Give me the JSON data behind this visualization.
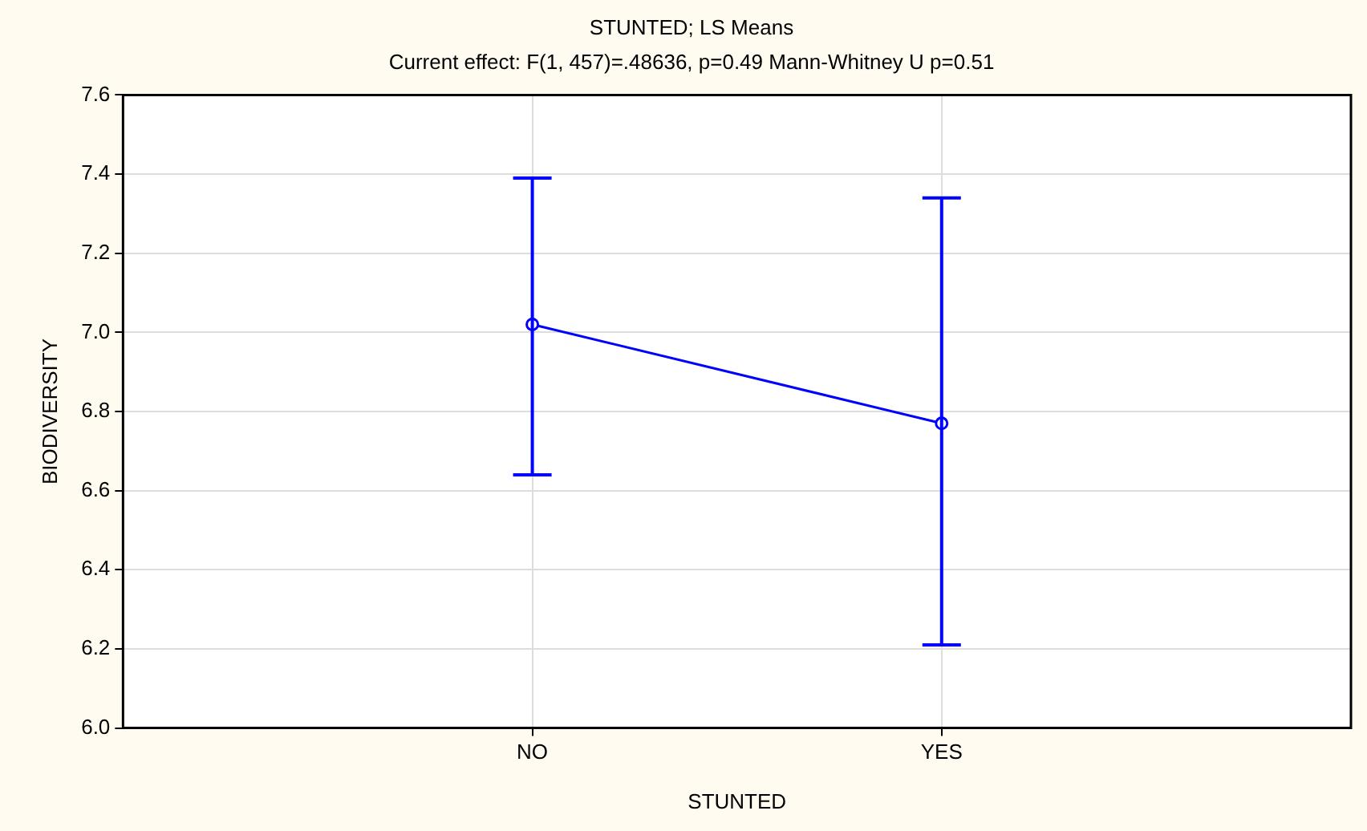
{
  "chart_data": {
    "type": "line",
    "title": "STUNTED; LS Means",
    "subtitle": "Current effect: F(1, 457)=.48636, p=0.49 Mann-Whitney U p=0.51",
    "xlabel": "STUNTED",
    "ylabel": "BIODIVERSITY",
    "categories": [
      "NO",
      "YES"
    ],
    "series": [
      {
        "color": "#0000ff",
        "values": [
          7.02,
          6.77
        ],
        "errors": [
          [
            6.64,
            7.39
          ],
          [
            6.21,
            7.34
          ]
        ]
      }
    ],
    "ylim": [
      6.0,
      7.6
    ],
    "yticks": [
      {
        "value": 6,
        "label": "6.0"
      },
      6.2,
      6.4,
      6.6,
      6.8,
      {
        "value": 7,
        "label": "7.0"
      },
      7.2,
      7.4,
      7.6
    ],
    "grid": true,
    "legend": false,
    "marker": "circle",
    "line_style": "solid"
  }
}
